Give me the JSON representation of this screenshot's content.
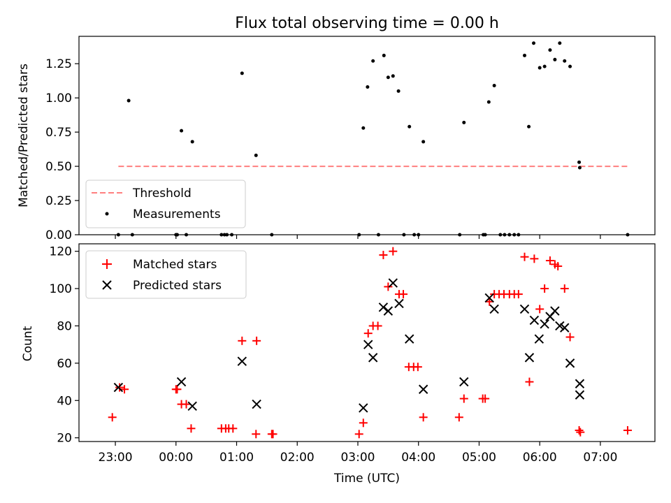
{
  "chart_data": [
    {
      "type": "scatter",
      "title": "Flux total observing time = 0.00 h",
      "xlabel": "",
      "ylabel": "Matched/Predicted stars",
      "ylim": [
        0,
        1.45
      ],
      "xlim": [
        -1.6,
        7.9
      ],
      "yticks": [
        0.0,
        0.25,
        0.5,
        0.75,
        1.0,
        1.25
      ],
      "ytick_labels": [
        "0.00",
        "0.25",
        "0.50",
        "0.75",
        "1.00",
        "1.25"
      ],
      "legend_position": "lower-left",
      "threshold": {
        "name": "Threshold",
        "value": 0.5,
        "x_range": [
          -0.95,
          7.45
        ],
        "color": "#ff7f7f"
      },
      "series": [
        {
          "name": "Measurements",
          "color": "#000000",
          "x": [
            -0.95,
            -0.78,
            -0.72,
            0.0,
            0.02,
            0.09,
            0.17,
            0.27,
            0.75,
            0.8,
            0.84,
            0.92,
            1.09,
            1.32,
            1.58,
            3.02,
            3.09,
            3.16,
            3.25,
            3.34,
            3.43,
            3.5,
            3.58,
            3.67,
            3.76,
            3.85,
            3.93,
            4.0,
            4.08,
            4.68,
            4.75,
            5.07,
            5.1,
            5.16,
            5.25,
            5.35,
            5.42,
            5.5,
            5.58,
            5.65,
            5.75,
            5.82,
            5.9,
            6.0,
            6.08,
            6.17,
            6.25,
            6.33,
            6.41,
            6.5,
            6.65,
            6.66,
            7.45
          ],
          "y": [
            0.0,
            0.98,
            0.0,
            0.0,
            0.0,
            0.76,
            0.0,
            0.68,
            0.0,
            0.0,
            0.0,
            0.0,
            1.18,
            0.58,
            0.0,
            0.0,
            0.78,
            1.08,
            1.27,
            0.0,
            1.31,
            1.15,
            1.16,
            1.05,
            0.0,
            0.79,
            0.0,
            0.0,
            0.68,
            0.0,
            0.82,
            0.0,
            0.0,
            0.97,
            1.09,
            0.0,
            0.0,
            0.0,
            0.0,
            0.0,
            1.31,
            0.79,
            1.4,
            1.22,
            1.23,
            1.35,
            1.28,
            1.4,
            1.27,
            1.23,
            0.53,
            0.49,
            0.0
          ]
        }
      ]
    },
    {
      "type": "scatter",
      "title": "",
      "xlabel": "Time (UTC)",
      "ylabel": "Count",
      "ylim": [
        18,
        124
      ],
      "xlim": [
        -1.6,
        7.9
      ],
      "yticks": [
        20,
        40,
        60,
        80,
        100,
        120
      ],
      "ytick_labels": [
        "20",
        "40",
        "60",
        "80",
        "100",
        "120"
      ],
      "xticks": [
        -1,
        0,
        1,
        2,
        3,
        4,
        5,
        6,
        7
      ],
      "xtick_labels": [
        "23:00",
        "00:00",
        "01:00",
        "02:00",
        "03:00",
        "04:00",
        "05:00",
        "06:00",
        "07:00"
      ],
      "legend_position": "top-left",
      "series": [
        {
          "name": "Matched stars",
          "marker": "plus",
          "color": "#ff0000",
          "x": [
            -1.05,
            -0.93,
            -0.85,
            0.0,
            0.02,
            0.09,
            0.17,
            0.25,
            0.75,
            0.82,
            0.87,
            0.94,
            1.09,
            1.32,
            1.33,
            1.58,
            1.6,
            3.02,
            3.09,
            3.17,
            3.25,
            3.33,
            3.42,
            3.5,
            3.58,
            3.68,
            3.75,
            3.84,
            3.92,
            3.99,
            4.08,
            4.67,
            4.75,
            5.06,
            5.1,
            5.17,
            5.25,
            5.33,
            5.41,
            5.5,
            5.58,
            5.65,
            5.75,
            5.83,
            5.91,
            6.0,
            6.08,
            6.17,
            6.25,
            6.3,
            6.41,
            6.5,
            6.65,
            6.67,
            7.45
          ],
          "y": [
            31,
            47,
            46,
            46,
            46,
            38,
            38,
            25,
            25,
            25,
            25,
            25,
            72,
            22,
            72,
            22,
            22,
            22,
            28,
            76,
            80,
            80,
            118,
            101,
            120,
            97,
            97,
            58,
            58,
            58,
            31,
            31,
            41,
            41,
            41,
            93,
            97,
            97,
            97,
            97,
            97,
            97,
            117,
            50,
            116,
            89,
            100,
            115,
            113,
            112,
            100,
            74,
            24,
            23,
            24
          ]
        },
        {
          "name": "Predicted stars",
          "marker": "x",
          "color": "#000000",
          "x": [
            -0.95,
            0.09,
            0.27,
            1.09,
            1.33,
            3.09,
            3.17,
            3.25,
            3.42,
            3.5,
            3.58,
            3.68,
            3.85,
            4.08,
            4.75,
            5.17,
            5.25,
            5.75,
            5.83,
            5.91,
            5.99,
            6.08,
            6.17,
            6.25,
            6.33,
            6.41,
            6.5,
            6.66,
            6.66
          ],
          "y": [
            47,
            50,
            37,
            61,
            38,
            36,
            70,
            63,
            90,
            88,
            103,
            92,
            73,
            46,
            50,
            95,
            89,
            89,
            63,
            83,
            73,
            81,
            85,
            88,
            80,
            79,
            60,
            49,
            43
          ]
        }
      ]
    }
  ]
}
